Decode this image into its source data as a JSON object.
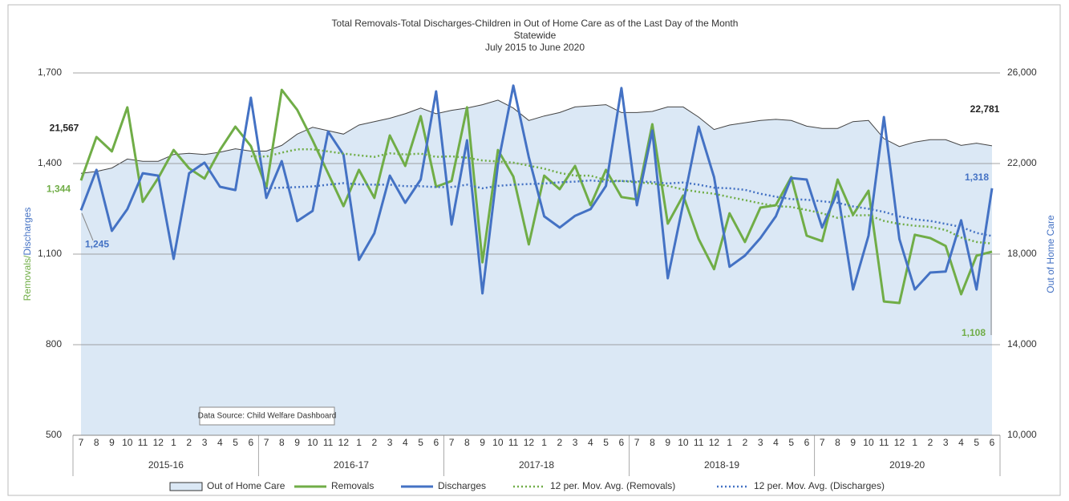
{
  "chart_data": {
    "type": "combo",
    "title": "Total Removals-Total  Discharges-Children in Out of Home Care as of the Last Day of the Month",
    "subtitle": "Statewide",
    "date_range": "July 2015 to June 2020",
    "ylabel": [
      "Removals/",
      "Discharges"
    ],
    "y2label": "Out of Home Care",
    "annotation": "Data Source: Child Welfare Dashboard",
    "categories": [
      "7",
      "8",
      "9",
      "10",
      "11",
      "12",
      "1",
      "2",
      "3",
      "4",
      "5",
      "6",
      "7",
      "8",
      "9",
      "10",
      "11",
      "12",
      "1",
      "2",
      "3",
      "4",
      "5",
      "6",
      "7",
      "8",
      "9",
      "10",
      "11",
      "12",
      "1",
      "2",
      "3",
      "4",
      "5",
      "6",
      "7",
      "8",
      "9",
      "10",
      "11",
      "12",
      "1",
      "2",
      "3",
      "4",
      "5",
      "6",
      "7",
      "8",
      "9",
      "10",
      "11",
      "12",
      "1",
      "2",
      "3",
      "4",
      "5",
      "6"
    ],
    "groups": [
      "2015-16",
      "2016-17",
      "2017-18",
      "2018-19",
      "2019-20"
    ],
    "ylim": [
      500,
      1700
    ],
    "yticks": [
      500,
      800,
      {
        "value": 1100,
        "label": "1,100"
      },
      {
        "value": 1400,
        "label": "1,400"
      },
      {
        "value": 1700,
        "label": "1,700"
      }
    ],
    "y2lim": [
      10000,
      26000
    ],
    "y2ticks": [
      {
        "value": 10000,
        "label": "10,000"
      },
      {
        "value": 14000,
        "label": "14,000"
      },
      {
        "value": 18000,
        "label": "18,000"
      },
      {
        "value": 22000,
        "label": "22,000"
      },
      {
        "value": 26000,
        "label": "26,000"
      }
    ],
    "grid": true,
    "legend": "bottom",
    "series": [
      {
        "name": "Out of Home Care",
        "type": "area",
        "axis": "y2",
        "color": "#dbe8f5",
        "values": [
          21567,
          21650,
          21800,
          22200,
          22100,
          22100,
          22400,
          22450,
          22400,
          22500,
          22650,
          22550,
          22550,
          22800,
          23300,
          23600,
          23450,
          23300,
          23700,
          23850,
          24000,
          24200,
          24450,
          24200,
          24350,
          24450,
          24600,
          24800,
          24450,
          23900,
          24100,
          24250,
          24500,
          24550,
          24600,
          24250,
          24250,
          24300,
          24500,
          24500,
          24050,
          23500,
          23700,
          23800,
          23900,
          23950,
          23900,
          23650,
          23550,
          23550,
          23850,
          23900,
          23100,
          22750,
          22950,
          23050,
          23050,
          22800,
          22900,
          22781
        ],
        "value_labels": {
          "0": "21,567",
          "59": "22,781"
        }
      },
      {
        "name": "Removals",
        "type": "line",
        "color": "#70ad47",
        "values": [
          1344,
          1488,
          1440,
          1586,
          1273,
          1352,
          1445,
          1384,
          1350,
          1445,
          1522,
          1458,
          1320,
          1644,
          1578,
          1477,
          1368,
          1259,
          1379,
          1286,
          1493,
          1392,
          1557,
          1323,
          1342,
          1586,
          1073,
          1445,
          1357,
          1132,
          1360,
          1315,
          1392,
          1262,
          1379,
          1289,
          1281,
          1530,
          1201,
          1294,
          1150,
          1050,
          1235,
          1140,
          1254,
          1262,
          1355,
          1161,
          1143,
          1347,
          1230,
          1310,
          943,
          938,
          1164,
          1153,
          1127,
          967,
          1095,
          1108
        ],
        "value_labels": {
          "0": "1,344",
          "59": "1,108"
        }
      },
      {
        "name": "Discharges",
        "type": "line",
        "color": "#4472c4",
        "values": [
          1245,
          1379,
          1177,
          1249,
          1368,
          1360,
          1084,
          1368,
          1403,
          1323,
          1312,
          1618,
          1286,
          1408,
          1209,
          1243,
          1506,
          1429,
          1081,
          1169,
          1360,
          1270,
          1347,
          1639,
          1198,
          1477,
          970,
          1397,
          1658,
          1421,
          1225,
          1188,
          1227,
          1249,
          1326,
          1650,
          1262,
          1509,
          1020,
          1267,
          1522,
          1355,
          1058,
          1095,
          1153,
          1225,
          1352,
          1347,
          1188,
          1307,
          983,
          1161,
          1554,
          1150,
          983,
          1039,
          1042,
          1212,
          983,
          1318
        ],
        "value_labels": {
          "0": "1,245",
          "59": "1,318"
        }
      },
      {
        "name": "12 per. Mov. Avg. (Removals)",
        "type": "dotted",
        "color": "#70ad47",
        "values": [
          null,
          null,
          null,
          null,
          null,
          null,
          null,
          null,
          null,
          null,
          null,
          1424,
          1423,
          1436,
          1447,
          1447,
          1440,
          1433,
          1427,
          1422,
          1434,
          1430,
          1433,
          1422,
          1424,
          1419,
          1410,
          1407,
          1403,
          1393,
          1383,
          1369,
          1360,
          1360,
          1345,
          1342,
          1338,
          1334,
          1326,
          1314,
          1306,
          1300,
          1289,
          1279,
          1268,
          1259,
          1256,
          1246,
          1235,
          1220,
          1228,
          1229,
          1210,
          1200,
          1194,
          1190,
          1180,
          1155,
          1140,
          1135
        ]
      },
      {
        "name": "12 per. Mov. Avg. (Discharges)",
        "type": "dotted",
        "color": "#4472c4",
        "values": [
          null,
          null,
          null,
          null,
          null,
          null,
          null,
          null,
          null,
          null,
          null,
          null,
          1318,
          1320,
          1322,
          1324,
          1330,
          1335,
          1331,
          1330,
          1330,
          1325,
          1325,
          1322,
          1322,
          1330,
          1318,
          1326,
          1330,
          1332,
          1334,
          1338,
          1340,
          1344,
          1340,
          1342,
          1341,
          1339,
          1334,
          1337,
          1330,
          1320,
          1318,
          1313,
          1300,
          1290,
          1282,
          1280,
          1275,
          1270,
          1258,
          1250,
          1240,
          1225,
          1215,
          1210,
          1200,
          1190,
          1170,
          1160
        ]
      }
    ]
  }
}
